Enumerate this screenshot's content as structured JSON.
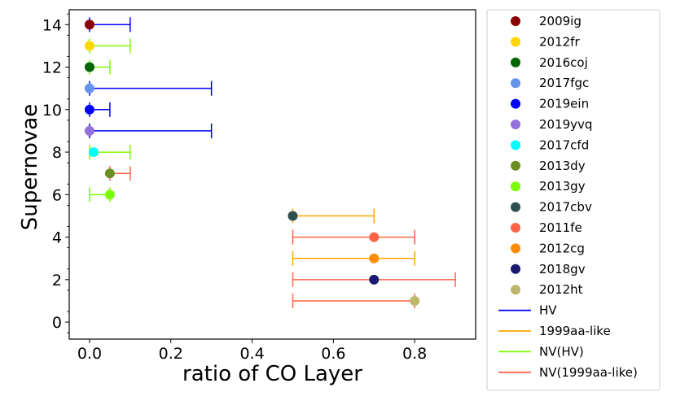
{
  "chart_data": {
    "type": "scatter",
    "xlabel": "ratio of CO Layer",
    "ylabel": "Supernovae",
    "xlim": [
      -0.05,
      0.95
    ],
    "ylim": [
      -0.8,
      14.7
    ],
    "xticks": [
      "0.0",
      "0.2",
      "0.4",
      "0.6",
      "0.8"
    ],
    "xtick_values": [
      0.0,
      0.2,
      0.4,
      0.6,
      0.8
    ],
    "yticks": [
      "0",
      "2",
      "4",
      "6",
      "8",
      "10",
      "12",
      "14"
    ],
    "ytick_values": [
      0,
      2,
      4,
      6,
      8,
      10,
      12,
      14
    ],
    "grid": false,
    "legend_position": "outside-right",
    "points": [
      {
        "name": "2009ig",
        "x": 0.0,
        "y": 14,
        "color": "#8b0000",
        "xerr": [
          0.0,
          0.1
        ],
        "errgroup": 0
      },
      {
        "name": "2012fr",
        "x": 0.0,
        "y": 13,
        "color": "#ffd700",
        "xerr": [
          0.0,
          0.1
        ],
        "errgroup": 2
      },
      {
        "name": "2016coj",
        "x": 0.0,
        "y": 12,
        "color": "#006400",
        "xerr": [
          0.0,
          0.05
        ],
        "errgroup": 2
      },
      {
        "name": "2017fgc",
        "x": 0.0,
        "y": 11,
        "color": "#6495ed",
        "xerr": [
          0.0,
          0.3
        ],
        "errgroup": 0
      },
      {
        "name": "2019ein",
        "x": 0.0,
        "y": 10,
        "color": "#0000ff",
        "xerr": [
          0.0,
          0.05
        ],
        "errgroup": 0
      },
      {
        "name": "2019yvq",
        "x": 0.0,
        "y": 9,
        "color": "#9370db",
        "xerr": [
          0.0,
          0.3
        ],
        "errgroup": 0
      },
      {
        "name": "2017cfd",
        "x": 0.01,
        "y": 8,
        "color": "#00ffff",
        "xerr": [
          0.0,
          0.1
        ],
        "errgroup": 2
      },
      {
        "name": "2013dy",
        "x": 0.05,
        "y": 7,
        "color": "#6b8e23",
        "xerr": [
          0.05,
          0.1
        ],
        "errgroup": 3
      },
      {
        "name": "2013gy",
        "x": 0.05,
        "y": 6,
        "color": "#7cfc00",
        "xerr": [
          0.0,
          0.05
        ],
        "errgroup": 2
      },
      {
        "name": "2017cbv",
        "x": 0.5,
        "y": 5,
        "color": "#2f4f4f",
        "xerr": [
          0.5,
          0.7
        ],
        "errgroup": 1
      },
      {
        "name": "2011fe",
        "x": 0.7,
        "y": 4,
        "color": "#ff6347",
        "xerr": [
          0.5,
          0.8
        ],
        "errgroup": 3
      },
      {
        "name": "2012cg",
        "x": 0.7,
        "y": 3,
        "color": "#ff8c00",
        "xerr": [
          0.5,
          0.8
        ],
        "errgroup": 1
      },
      {
        "name": "2018gv",
        "x": 0.7,
        "y": 2,
        "color": "#191970",
        "xerr": [
          0.5,
          0.9
        ],
        "errgroup": 3
      },
      {
        "name": "2012ht",
        "x": 0.8,
        "y": 1,
        "color": "#bdb76b",
        "xerr": [
          0.5,
          0.8
        ],
        "errgroup": 3
      }
    ],
    "errorbar_series": [
      {
        "name": "HV",
        "color": "#0000ff"
      },
      {
        "name": "1999aa-like",
        "color": "#ffa500"
      },
      {
        "name": "NV(HV)",
        "color": "#7cfc00"
      },
      {
        "name": "NV(1999aa-like)",
        "color": "#ff6347"
      }
    ]
  }
}
